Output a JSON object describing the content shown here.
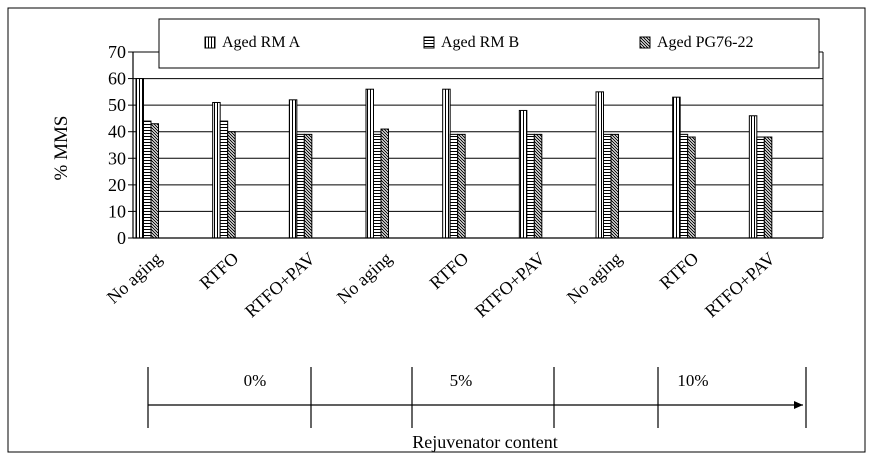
{
  "chart_data": {
    "type": "bar",
    "title": "",
    "ylabel": "% MMS",
    "xlabel": "Rejuvenator content",
    "ylim": [
      0,
      70
    ],
    "yticks": [
      0,
      10,
      20,
      30,
      40,
      50,
      60,
      70
    ],
    "grid": true,
    "legend_position": "top",
    "categories": [
      "No aging",
      "RTFO",
      "RTFO+PAV",
      "No aging",
      "RTFO",
      "RTFO+PAV",
      "No aging",
      "RTFO",
      "RTFO+PAV"
    ],
    "groups": [
      {
        "label": "0%",
        "categories": [
          "No aging",
          "RTFO",
          "RTFO+PAV"
        ]
      },
      {
        "label": "5%",
        "categories": [
          "No aging",
          "RTFO",
          "RTFO+PAV"
        ]
      },
      {
        "label": "10%",
        "categories": [
          "No aging",
          "RTFO",
          "RTFO+PAV"
        ]
      }
    ],
    "series": [
      {
        "name": "Aged RM A",
        "pattern": "vertical-lines",
        "values": [
          60,
          51,
          52,
          56,
          56,
          48,
          55,
          53,
          46
        ]
      },
      {
        "name": "Aged RM B",
        "pattern": "horizontal-lines",
        "values": [
          44,
          44,
          39,
          39,
          39,
          39,
          39,
          39,
          38
        ]
      },
      {
        "name": "Aged PG76-22",
        "pattern": "diagonal-lines",
        "values": [
          43,
          40,
          39,
          41,
          39,
          39,
          39,
          38,
          38
        ]
      }
    ]
  }
}
